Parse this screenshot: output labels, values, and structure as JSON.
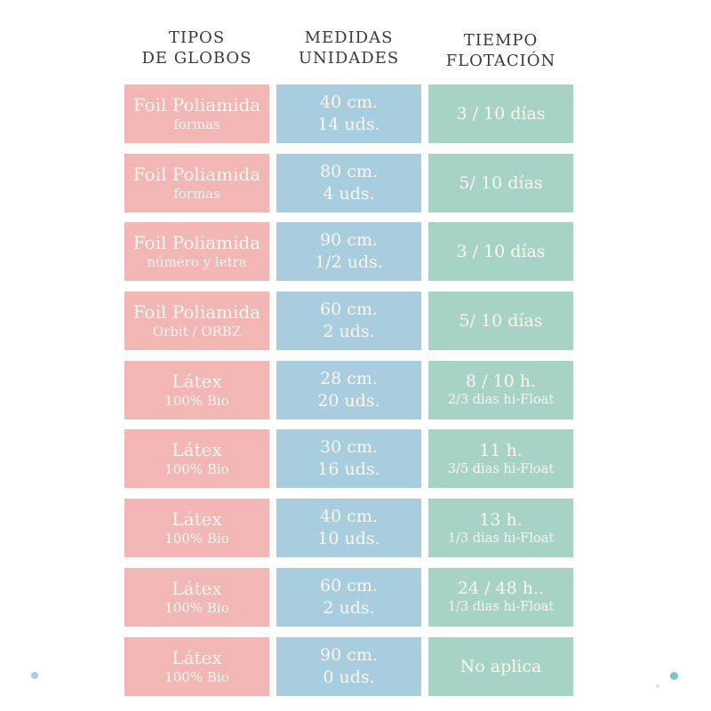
{
  "headers": {
    "col1": {
      "line1": "TIPOS",
      "line2": "DE GLOBOS"
    },
    "col2": {
      "line1": "MEDIDAS",
      "line2": "UNIDADES"
    },
    "col3": {
      "line1": "TIEMPO",
      "line2": "FLOTACIÓN"
    }
  },
  "colors": {
    "background": "#ffffff",
    "type_cell": "#f2b7b4",
    "size_cell": "#a7cdde",
    "float_cell": "#a7d3c6",
    "header_text": "#3a3a3a",
    "cell_text": "#fbf6f0",
    "dot_left": "#a5cede",
    "dot_right": "#7fc6c0",
    "dot_speck": "#d9e5e8"
  },
  "table": {
    "rows": [
      {
        "type": {
          "line1": "Foil Poliamida",
          "line2": "formas"
        },
        "size": {
          "line1": "40 cm.",
          "line2": "14 uds."
        },
        "float": {
          "line1": "3 / 10 días",
          "line2": ""
        }
      },
      {
        "type": {
          "line1": "Foil Poliamida",
          "line2": "formas"
        },
        "size": {
          "line1": "80 cm.",
          "line2": "4 uds."
        },
        "float": {
          "line1": "5/ 10 días",
          "line2": ""
        }
      },
      {
        "type": {
          "line1": "Foil Poliamida",
          "line2": "número y letra"
        },
        "size": {
          "line1": "90 cm.",
          "line2": "1/2 uds."
        },
        "float": {
          "line1": "3 / 10 días",
          "line2": ""
        }
      },
      {
        "type": {
          "line1": "Foil Poliamida",
          "line2": "Orbit / ORBZ"
        },
        "size": {
          "line1": "60 cm.",
          "line2": "2 uds."
        },
        "float": {
          "line1": "5/ 10 días",
          "line2": ""
        }
      },
      {
        "type": {
          "line1": "Látex",
          "line2": "100% Bio"
        },
        "size": {
          "line1": "28 cm.",
          "line2": "20 uds."
        },
        "float": {
          "line1": "8 / 10 h.",
          "line2": "2/3 dias hi-Float"
        }
      },
      {
        "type": {
          "line1": "Látex",
          "line2": "100% Bio"
        },
        "size": {
          "line1": "30 cm.",
          "line2": "16 uds."
        },
        "float": {
          "line1": "11 h.",
          "line2": "3/5 dias hi-Float"
        }
      },
      {
        "type": {
          "line1": "Látex",
          "line2": "100% Bio"
        },
        "size": {
          "line1": "40 cm.",
          "line2": "10 uds."
        },
        "float": {
          "line1": "13 h.",
          "line2": "1/3 dias hi-Float"
        }
      },
      {
        "type": {
          "line1": "Látex",
          "line2": "100% Bio"
        },
        "size": {
          "line1": "60 cm.",
          "line2": "2 uds."
        },
        "float": {
          "line1": "24 / 48 h..",
          "line2": "1/3 dias hi-Float"
        }
      },
      {
        "type": {
          "line1": "Látex",
          "line2": "100% Bio"
        },
        "size": {
          "line1": "90 cm.",
          "line2": "0 uds."
        },
        "float": {
          "line1": "No aplica",
          "line2": ""
        }
      }
    ]
  },
  "decorations": {
    "dot_left": "small light-blue dot, bottom-left",
    "dot_right": "small teal dot, bottom-right",
    "speck": "faint tiny speck near bottom-right dot"
  },
  "chart_data": {
    "type": "table",
    "title": "",
    "columns": [
      "TIPOS DE GLOBOS",
      "MEDIDAS UNIDADES",
      "TIEMPO FLOTACIÓN"
    ],
    "rows": [
      [
        "Foil Poliamida formas",
        "40 cm. 14 uds.",
        "3 / 10 días"
      ],
      [
        "Foil Poliamida formas",
        "80 cm. 4 uds.",
        "5/ 10 días"
      ],
      [
        "Foil Poliamida número y letra",
        "90 cm. 1/2 uds.",
        "3 / 10 días"
      ],
      [
        "Foil Poliamida Orbit / ORBZ",
        "60 cm. 2 uds.",
        "5/ 10 días"
      ],
      [
        "Látex 100% Bio",
        "28 cm. 20 uds.",
        "8 / 10 h. 2/3 dias hi-Float"
      ],
      [
        "Látex 100% Bio",
        "30 cm. 16 uds.",
        "11 h. 3/5 dias hi-Float"
      ],
      [
        "Látex 100% Bio",
        "40 cm. 10 uds.",
        "13 h. 1/3 dias hi-Float"
      ],
      [
        "Látex 100% Bio",
        "60 cm. 2 uds.",
        "24 / 48 h.. 1/3 dias hi-Float"
      ],
      [
        "Látex 100% Bio",
        "90 cm. 0 uds.",
        "No aplica"
      ]
    ],
    "layout": {
      "column_colors": [
        "#f2b7b4",
        "#a7cdde",
        "#a7d3c6"
      ],
      "grid": "off",
      "header_position": "top"
    }
  }
}
